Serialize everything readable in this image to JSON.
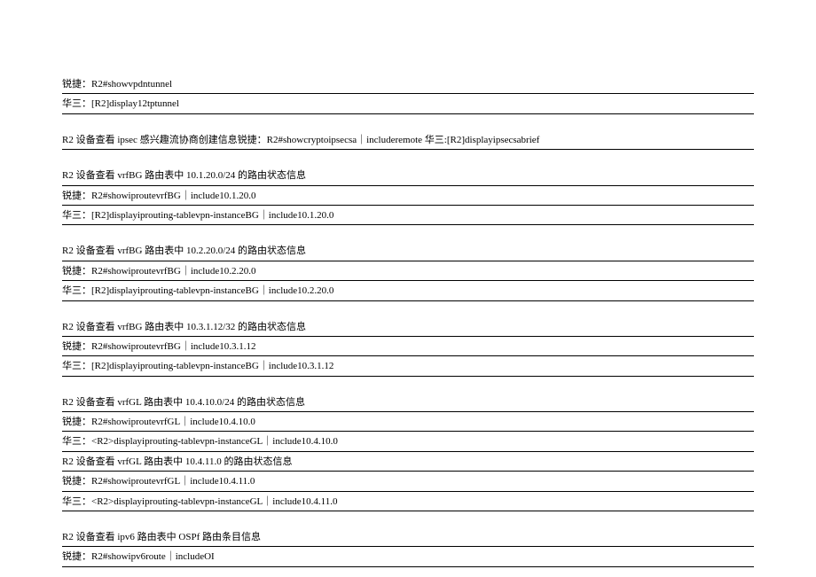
{
  "lines": [
    "锐捷：R2#showvpdntunnel",
    "华三：[R2]display12tptunnel",
    "",
    "R2 设备查看 ipsec 感兴趣流协商创建信息锐捷：R2#showcryptoipsecsa｜includeremote 华三:[R2]displayipsecsabrief",
    "",
    "R2 设备查看 vrfBG 路由表中 10.1.20.0/24 的路由状态信息",
    "锐捷：R2#showiproutevrfBG｜include10.1.20.0",
    "华三：[R2]displayiprouting-tablevpn-instanceBG｜include10.1.20.0",
    "",
    "R2 设备查看 vrfBG 路由表中 10.2.20.0/24 的路由状态信息",
    "锐捷：R2#showiproutevrfBG｜include10.2.20.0",
    "华三：[R2]displayiprouting-tablevpn-instanceBG｜include10.2.20.0",
    "",
    "R2 设备查看 vrfBG 路由表中 10.3.1.12/32 的路由状态信息",
    "锐捷：R2#showiproutevrfBG｜include10.3.1.12",
    "华三：[R2]displayiprouting-tablevpn-instanceBG｜include10.3.1.12",
    "",
    "R2 设备查看 vrfGL 路由表中 10.4.10.0/24 的路由状态信息",
    "锐捷：R2#showiproutevrfGL｜include10.4.10.0",
    "华三：<R2>displayiprouting-tablevpn-instanceGL｜include10.4.10.0",
    "R2 设备查看 vrfGL 路由表中 10.4.11.0 的路由状态信息",
    "锐捷：R2#showiproutevrfGL｜include10.4.11.0",
    "华三：<R2>displayiprouting-tablevpn-instanceGL｜include10.4.11.0",
    "",
    "R2 设备查看 ipv6 路由表中 OSPf 路由条目信息",
    "锐捷：R2#showipv6route｜includeOI"
  ],
  "text_color": "#000000",
  "background_color": "#ffffff",
  "font_size": 11,
  "line_border_color": "#000000"
}
